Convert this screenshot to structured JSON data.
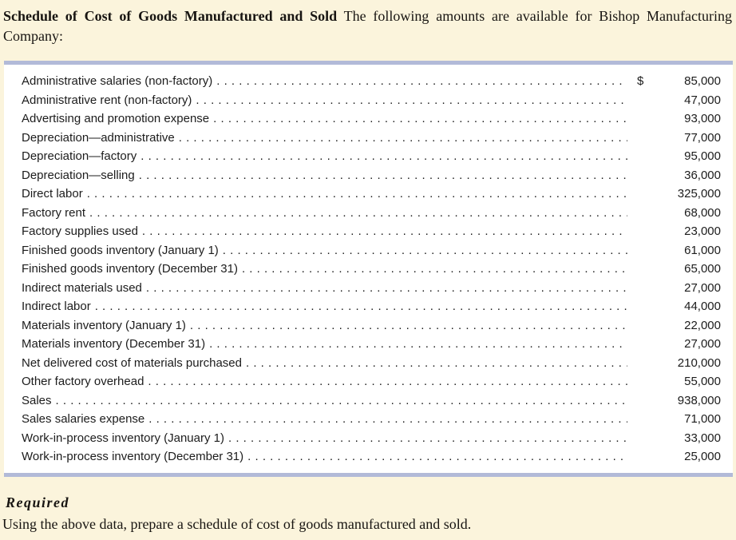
{
  "header": {
    "title_bold": "Schedule of Cost of Goods Manufactured and Sold",
    "title_rest": " The following amounts are available for Bishop Manufacturing Company:"
  },
  "table": {
    "rows": [
      {
        "label": "Administrative salaries (non-factory)",
        "currency": "$",
        "amount": "85,000"
      },
      {
        "label": "Administrative rent (non-factory)",
        "currency": "",
        "amount": "47,000"
      },
      {
        "label": "Advertising and promotion expense",
        "currency": "",
        "amount": "93,000"
      },
      {
        "label": "Depreciation—administrative",
        "currency": "",
        "amount": "77,000"
      },
      {
        "label": "Depreciation—factory",
        "currency": "",
        "amount": "95,000"
      },
      {
        "label": "Depreciation—selling",
        "currency": "",
        "amount": "36,000"
      },
      {
        "label": "Direct labor",
        "currency": "",
        "amount": "325,000"
      },
      {
        "label": "Factory rent",
        "currency": "",
        "amount": "68,000"
      },
      {
        "label": "Factory supplies used",
        "currency": "",
        "amount": "23,000"
      },
      {
        "label": "Finished goods inventory (January 1)",
        "currency": "",
        "amount": "61,000"
      },
      {
        "label": "Finished goods inventory (December 31)",
        "currency": "",
        "amount": "65,000"
      },
      {
        "label": "Indirect materials used",
        "currency": "",
        "amount": "27,000"
      },
      {
        "label": "Indirect labor",
        "currency": "",
        "amount": "44,000"
      },
      {
        "label": "Materials inventory (January 1)",
        "currency": "",
        "amount": "22,000"
      },
      {
        "label": "Materials inventory (December 31)",
        "currency": "",
        "amount": "27,000"
      },
      {
        "label": "Net delivered cost of materials purchased",
        "currency": "",
        "amount": "210,000"
      },
      {
        "label": "Other factory overhead",
        "currency": "",
        "amount": "55,000"
      },
      {
        "label": "Sales",
        "currency": "",
        "amount": "938,000"
      },
      {
        "label": "Sales salaries expense",
        "currency": "",
        "amount": "71,000"
      },
      {
        "label": "Work-in-process inventory (January 1)",
        "currency": "",
        "amount": "33,000"
      },
      {
        "label": "Work-in-process inventory (December 31)",
        "currency": "",
        "amount": "25,000"
      }
    ]
  },
  "required": {
    "heading": "Required",
    "text": "Using the above data, prepare a schedule of cost of goods manufactured and sold."
  },
  "colors": {
    "page_background": "#FBF4DC",
    "panel_background": "#FFFFFF",
    "rule_line": "#B2BAD8",
    "text": "#1C1C1C"
  }
}
